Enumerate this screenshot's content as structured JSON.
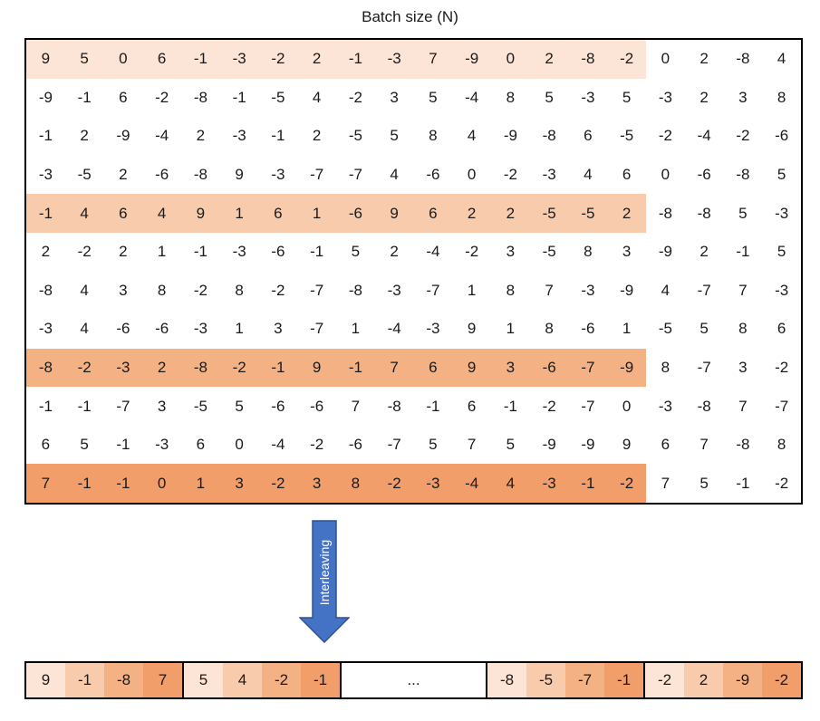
{
  "title": "Batch size (N)",
  "highlight_width": 16,
  "colors": {
    "shade1": "#fce4d6",
    "shade2": "#f8cbad",
    "shade3": "#f4b183",
    "shade4": "#f19e6a",
    "arrow_fill": "#4472c4",
    "arrow_stroke": "#2f528f"
  },
  "rows": [
    {
      "shade": 1,
      "values": [
        "9",
        "5",
        "0",
        "6",
        "-1",
        "-3",
        "-2",
        "2",
        "-1",
        "-3",
        "7",
        "-9",
        "0",
        "2",
        "-8",
        "-2",
        "0",
        "2",
        "-8",
        "4"
      ]
    },
    {
      "shade": 0,
      "values": [
        "-9",
        "-1",
        "6",
        "-2",
        "-8",
        "-1",
        "-5",
        "4",
        "-2",
        "3",
        "5",
        "-4",
        "8",
        "5",
        "-3",
        "5",
        "-3",
        "2",
        "3",
        "8"
      ]
    },
    {
      "shade": 0,
      "values": [
        "-1",
        "2",
        "-9",
        "-4",
        "2",
        "-3",
        "-1",
        "2",
        "-5",
        "5",
        "8",
        "4",
        "-9",
        "-8",
        "6",
        "-5",
        "-2",
        "-4",
        "-2",
        "-6"
      ]
    },
    {
      "shade": 0,
      "values": [
        "-3",
        "-5",
        "2",
        "-6",
        "-8",
        "9",
        "-3",
        "-7",
        "-7",
        "4",
        "-6",
        "0",
        "-2",
        "-3",
        "4",
        "6",
        "0",
        "-6",
        "-8",
        "5"
      ]
    },
    {
      "shade": 2,
      "values": [
        "-1",
        "4",
        "6",
        "4",
        "9",
        "1",
        "6",
        "1",
        "-6",
        "9",
        "6",
        "2",
        "2",
        "-5",
        "-5",
        "2",
        "-8",
        "-8",
        "5",
        "-3"
      ]
    },
    {
      "shade": 0,
      "values": [
        "2",
        "-2",
        "2",
        "1",
        "-1",
        "-3",
        "-6",
        "-1",
        "5",
        "2",
        "-4",
        "-2",
        "3",
        "-5",
        "8",
        "3",
        "-9",
        "2",
        "-1",
        "5"
      ]
    },
    {
      "shade": 0,
      "values": [
        "-8",
        "4",
        "3",
        "8",
        "-2",
        "8",
        "-2",
        "-7",
        "-8",
        "-3",
        "-7",
        "1",
        "8",
        "7",
        "-3",
        "-9",
        "4",
        "-7",
        "7",
        "-3"
      ]
    },
    {
      "shade": 0,
      "values": [
        "-3",
        "4",
        "-6",
        "-6",
        "-3",
        "1",
        "3",
        "-7",
        "1",
        "-4",
        "-3",
        "9",
        "1",
        "8",
        "-6",
        "1",
        "-5",
        "5",
        "8",
        "6"
      ]
    },
    {
      "shade": 3,
      "values": [
        "-8",
        "-2",
        "-3",
        "2",
        "-8",
        "-2",
        "-1",
        "9",
        "-1",
        "7",
        "6",
        "9",
        "3",
        "-6",
        "-7",
        "-9",
        "8",
        "-7",
        "3",
        "-2"
      ]
    },
    {
      "shade": 0,
      "values": [
        "-1",
        "-1",
        "-7",
        "3",
        "-5",
        "5",
        "-6",
        "-6",
        "7",
        "-8",
        "-1",
        "6",
        "-1",
        "-2",
        "-7",
        "0",
        "-3",
        "-8",
        "7",
        "-7"
      ]
    },
    {
      "shade": 0,
      "values": [
        "6",
        "5",
        "-1",
        "-3",
        "6",
        "0",
        "-4",
        "-2",
        "-6",
        "-7",
        "5",
        "7",
        "5",
        "-9",
        "-9",
        "9",
        "6",
        "7",
        "-8",
        "8"
      ]
    },
    {
      "shade": 4,
      "values": [
        "7",
        "-1",
        "-1",
        "0",
        "1",
        "3",
        "-2",
        "3",
        "8",
        "-2",
        "-3",
        "-4",
        "4",
        "-3",
        "-1",
        "-2",
        "7",
        "5",
        "-1",
        "-2"
      ]
    }
  ],
  "arrow": {
    "label": "Interleaving"
  },
  "output": {
    "groups": [
      [
        "9",
        "-1",
        "-8",
        "7"
      ],
      [
        "5",
        "4",
        "-2",
        "-1"
      ],
      [
        "-8",
        "-5",
        "-7",
        "-1"
      ],
      [
        "-2",
        "2",
        "-9",
        "-2"
      ]
    ],
    "ellipsis": "..."
  }
}
